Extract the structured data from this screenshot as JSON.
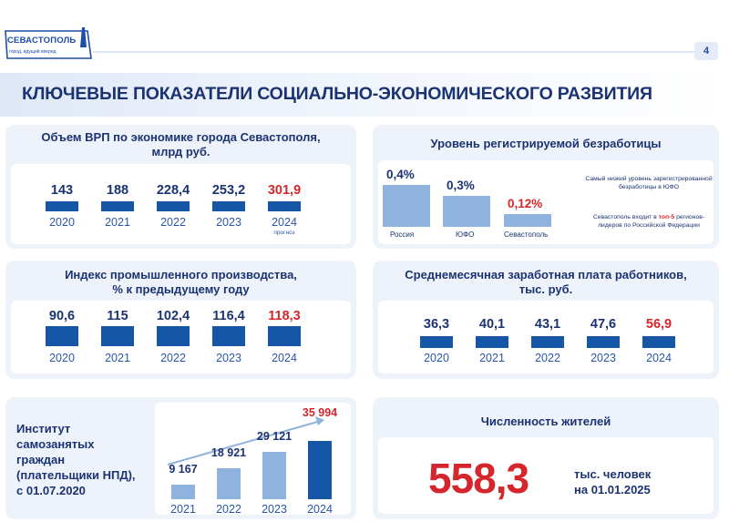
{
  "header": {
    "logo_title": "СЕВАСТОПОЛЬ",
    "logo_subtitle": "город, идущий вперед",
    "page_number": "4",
    "title": "КЛЮЧЕВЫЕ ПОКАЗАТЕЛИ СОЦИАЛЬНО-ЭКОНОМИЧЕСКОГО РАЗВИТИЯ"
  },
  "colors": {
    "primary": "#1556a6",
    "light_bar": "#8fb2de",
    "accent_red": "#d4262c",
    "text": "#1b3372"
  },
  "chart_data": [
    {
      "id": "grp",
      "type": "bar",
      "title": "Объем ВРП по экономике города Севастополя,",
      "subtitle": "млрд руб.",
      "categories": [
        "2020",
        "2021",
        "2022",
        "2023",
        "2024"
      ],
      "values": [
        143,
        188,
        228.4,
        253.2,
        301.9
      ],
      "labels": [
        "143",
        "188",
        "228,4",
        "253,2",
        "301,9"
      ],
      "highlight_index": 4,
      "notes": [
        "",
        "",
        "",
        "",
        "прогноз"
      ]
    },
    {
      "id": "unemployment",
      "type": "bar",
      "title": "Уровень регистрируемой безработицы",
      "categories": [
        "Россия",
        "ЮФО",
        "Севастополь"
      ],
      "values": [
        0.4,
        0.3,
        0.12
      ],
      "labels": [
        "0,4%",
        "0,3%",
        "0,12%"
      ],
      "highlight_index": 2,
      "ylim": [
        0,
        0.4
      ],
      "note_1": "Самый низкий уровень зарегистрированной безработицы в ЮФО",
      "note_2_prefix": "Севастополь входит в ",
      "note_2_highlight": "топ-5",
      "note_2_suffix": " регионов-лидеров по Российской Федерации"
    },
    {
      "id": "industry",
      "type": "bar",
      "title": "Индекс промышленного производства,",
      "subtitle": "% к предыдущему году",
      "categories": [
        "2020",
        "2021",
        "2022",
        "2023",
        "2024"
      ],
      "values": [
        90.6,
        115,
        102.4,
        116.4,
        118.3
      ],
      "labels": [
        "90,6",
        "115",
        "102,4",
        "116,4",
        "118,3"
      ],
      "highlight_index": 4
    },
    {
      "id": "salary",
      "type": "bar",
      "title": "Среднемесячная заработная плата работников,",
      "subtitle": "тыс. руб.",
      "categories": [
        "2020",
        "2021",
        "2022",
        "2023",
        "2024"
      ],
      "values": [
        36.3,
        40.1,
        43.1,
        47.6,
        56.9
      ],
      "labels": [
        "36,3",
        "40,1",
        "43,1",
        "47,6",
        "56,9"
      ],
      "highlight_index": 4
    },
    {
      "id": "self_employed",
      "type": "bar",
      "title": "Институт самозанятых граждан (плательщики НПД), с 01.07.2020",
      "categories": [
        "2021",
        "2022",
        "2023",
        "2024"
      ],
      "values": [
        9167,
        18921,
        29121,
        35994
      ],
      "labels": [
        "9 167",
        "18 921",
        "29 121",
        "35 994"
      ],
      "highlight_index": 3
    }
  ],
  "grp_labels": {
    "title": "Объем ВРП по экономике города Севастополя,",
    "subtitle": "млрд руб.",
    "note": "прогноз"
  },
  "unemp_labels": {
    "title": "Уровень регистрируемой безработицы",
    "note_1": "Самый низкий уровень зарегистрированной безработицы в ЮФО",
    "note_2_prefix": "Севастополь входит в ",
    "note_2_highlight": "топ-5",
    "note_2_suffix": " регионов-лидеров по Российской Федерации"
  },
  "industry_labels": {
    "title": "Индекс промышленного производства,",
    "subtitle": "% к предыдущему году"
  },
  "salary_labels": {
    "title": "Среднемесячная заработная плата работников,",
    "subtitle": "тыс. руб."
  },
  "self_labels": {
    "line1": "Институт",
    "line2": "самозанятых",
    "line3": "граждан",
    "line4": "(плательщики НПД),",
    "line5": "с 01.07.2020"
  },
  "population": {
    "title": "Численность жителей",
    "value": "558,3",
    "unit_line1": "тыс. человек",
    "unit_line2": "на 01.01.2025"
  }
}
